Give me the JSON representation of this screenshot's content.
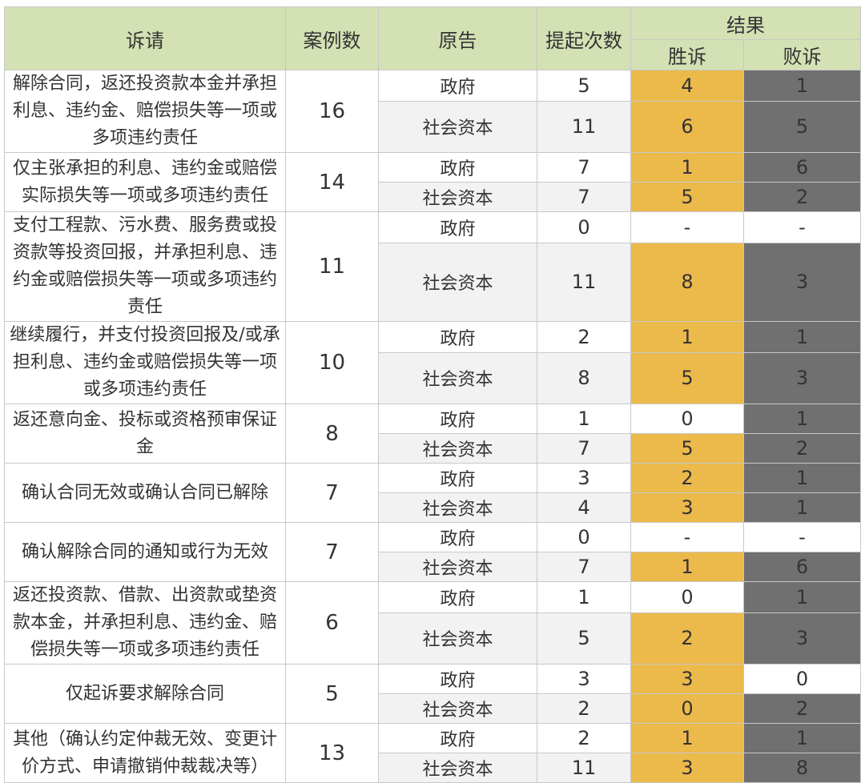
{
  "header": {
    "claim": "诉请",
    "cases": "案例数",
    "plaintiff": "原告",
    "times": "提起次数",
    "result": "结果",
    "win": "胜诉",
    "lose": "败诉"
  },
  "chart_data": {
    "type": "table",
    "colors": {
      "win": "#ecb94b",
      "lose": "#707070",
      "header": "#d4e1b4"
    },
    "groups": [
      {
        "claim": "解除合同，返还投资款本金并承担利息、违约金、赔偿损失等一项或多项违约责任",
        "cases": "16",
        "rows": [
          {
            "plaintiff": "政府",
            "times": "5",
            "win": "4",
            "lose": "1"
          },
          {
            "plaintiff": "社会资本",
            "times": "11",
            "win": "6",
            "lose": "5"
          }
        ]
      },
      {
        "claim": "仅主张承担的利息、违约金或赔偿实际损失等一项或多项违约责任",
        "cases": "14",
        "rows": [
          {
            "plaintiff": "政府",
            "times": "7",
            "win": "1",
            "lose": "6"
          },
          {
            "plaintiff": "社会资本",
            "times": "7",
            "win": "5",
            "lose": "2"
          }
        ]
      },
      {
        "claim": "支付工程款、污水费、服务费或投资款等投资回报，并承担利息、违约金或赔偿损失等一项或多项违约责任",
        "cases": "11",
        "rows": [
          {
            "plaintiff": "政府",
            "times": "0",
            "win": "-",
            "lose": "-"
          },
          {
            "plaintiff": "社会资本",
            "times": "11",
            "win": "8",
            "lose": "3"
          }
        ]
      },
      {
        "claim": "继续履行，并支付投资回报及/或承担利息、违约金或赔偿损失等一项或多项违约责任",
        "cases": "10",
        "rows": [
          {
            "plaintiff": "政府",
            "times": "2",
            "win": "1",
            "lose": "1"
          },
          {
            "plaintiff": "社会资本",
            "times": "8",
            "win": "5",
            "lose": "3"
          }
        ]
      },
      {
        "claim": "返还意向金、投标或资格预审保证金",
        "cases": "8",
        "rows": [
          {
            "plaintiff": "政府",
            "times": "1",
            "win": "0",
            "lose": "1"
          },
          {
            "plaintiff": "社会资本",
            "times": "7",
            "win": "5",
            "lose": "2"
          }
        ]
      },
      {
        "claim": "确认合同无效或确认合同已解除",
        "cases": "7",
        "rows": [
          {
            "plaintiff": "政府",
            "times": "3",
            "win": "2",
            "lose": "1"
          },
          {
            "plaintiff": "社会资本",
            "times": "4",
            "win": "3",
            "lose": "1"
          }
        ]
      },
      {
        "claim": "确认解除合同的通知或行为无效",
        "cases": "7",
        "rows": [
          {
            "plaintiff": "政府",
            "times": "0",
            "win": "-",
            "lose": "-"
          },
          {
            "plaintiff": "社会资本",
            "times": "7",
            "win": "1",
            "lose": "6"
          }
        ]
      },
      {
        "claim": "返还投资款、借款、出资款或垫资款本金，并承担利息、违约金、赔偿损失等一项或多项违约责任",
        "cases": "6",
        "rows": [
          {
            "plaintiff": "政府",
            "times": "1",
            "win": "0",
            "lose": "1"
          },
          {
            "plaintiff": "社会资本",
            "times": "5",
            "win": "2",
            "lose": "3"
          }
        ]
      },
      {
        "claim": "仅起诉要求解除合同",
        "cases": "5",
        "rows": [
          {
            "plaintiff": "政府",
            "times": "3",
            "win": "3",
            "lose": "0"
          },
          {
            "plaintiff": "社会资本",
            "times": "2",
            "win": "0",
            "lose": "2"
          }
        ]
      },
      {
        "claim": "其他（确认约定仲裁无效、变更计价方式、申请撤销仲裁裁决等）",
        "cases": "13",
        "rows": [
          {
            "plaintiff": "政府",
            "times": "2",
            "win": "1",
            "lose": "1"
          },
          {
            "plaintiff": "社会资本",
            "times": "11",
            "win": "3",
            "lose": "8"
          }
        ]
      }
    ]
  }
}
